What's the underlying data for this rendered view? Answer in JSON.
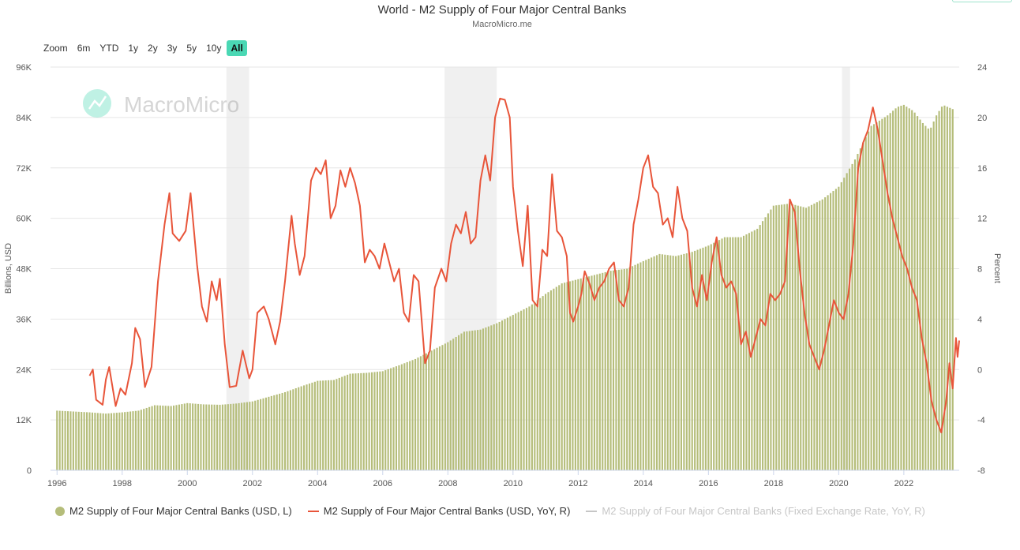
{
  "header": {
    "title": "World - M2 Supply of Four Major Central Banks",
    "subtitle": "MacroMicro.me",
    "watermark": "MacroMicro"
  },
  "range_buttons": [
    {
      "label": "Zoom",
      "active": false
    },
    {
      "label": "6m",
      "active": false
    },
    {
      "label": "YTD",
      "active": false
    },
    {
      "label": "1y",
      "active": false
    },
    {
      "label": "2y",
      "active": false
    },
    {
      "label": "3y",
      "active": false
    },
    {
      "label": "5y",
      "active": false
    },
    {
      "label": "10y",
      "active": false
    },
    {
      "label": "All",
      "active": true
    }
  ],
  "colors": {
    "bars": "#b5bd7a",
    "line": "#e8553a",
    "shade": "#f0f0f0",
    "grid": "#e6e6e6",
    "accent": "#4ad8b4",
    "muted_legend": "#c6c6c6"
  },
  "chart_data": {
    "type": "bar+line",
    "title": "World - M2 Supply of Four Major Central Banks",
    "subtitle": "MacroMicro.me",
    "x_range": [
      1995.8,
      2023.7
    ],
    "x_ticks": [
      "1996",
      "1998",
      "2000",
      "2002",
      "2004",
      "2006",
      "2008",
      "2010",
      "2012",
      "2014",
      "2016",
      "2018",
      "2020",
      "2022"
    ],
    "y_left": {
      "label": "Billions, USD",
      "range": [
        0,
        96000
      ],
      "ticks": [
        "0",
        "12K",
        "24K",
        "36K",
        "48K",
        "60K",
        "72K",
        "84K",
        "96K"
      ]
    },
    "y_right": {
      "label": "Percent",
      "range": [
        -8,
        24
      ],
      "ticks": [
        "-8",
        "-4",
        "0",
        "4",
        "8",
        "12",
        "16",
        "20",
        "24"
      ]
    },
    "grid": true,
    "legend_position": "bottom",
    "shaded_periods": [
      [
        2001.2,
        2001.9
      ],
      [
        2007.9,
        2009.5
      ],
      [
        2020.1,
        2020.35
      ]
    ],
    "series": [
      {
        "name": "M2 Supply of Four Major Central Banks (USD, L)",
        "type": "bar",
        "axis": "left",
        "points": [
          [
            1996.0,
            14200
          ],
          [
            1997.0,
            13800
          ],
          [
            1997.5,
            13500
          ],
          [
            1998.0,
            13800
          ],
          [
            1998.5,
            14200
          ],
          [
            1999.0,
            15500
          ],
          [
            1999.5,
            15300
          ],
          [
            2000.0,
            16000
          ],
          [
            2000.5,
            15700
          ],
          [
            2001.0,
            15600
          ],
          [
            2001.5,
            15900
          ],
          [
            2002.0,
            16400
          ],
          [
            2002.5,
            17500
          ],
          [
            2003.0,
            18600
          ],
          [
            2003.5,
            20000
          ],
          [
            2004.0,
            21300
          ],
          [
            2004.5,
            21500
          ],
          [
            2005.0,
            23000
          ],
          [
            2005.5,
            23200
          ],
          [
            2006.0,
            23600
          ],
          [
            2006.5,
            25000
          ],
          [
            2007.0,
            26500
          ],
          [
            2007.5,
            28500
          ],
          [
            2008.0,
            30500
          ],
          [
            2008.5,
            33000
          ],
          [
            2009.0,
            33500
          ],
          [
            2009.5,
            35000
          ],
          [
            2010.0,
            37000
          ],
          [
            2010.5,
            39000
          ],
          [
            2011.0,
            42000
          ],
          [
            2011.5,
            44500
          ],
          [
            2012.0,
            45500
          ],
          [
            2012.5,
            46500
          ],
          [
            2013.0,
            47500
          ],
          [
            2013.5,
            48000
          ],
          [
            2014.0,
            49800
          ],
          [
            2014.5,
            51500
          ],
          [
            2015.0,
            51000
          ],
          [
            2015.5,
            52000
          ],
          [
            2016.0,
            53500
          ],
          [
            2016.5,
            55500
          ],
          [
            2017.0,
            55500
          ],
          [
            2017.5,
            57500
          ],
          [
            2018.0,
            63000
          ],
          [
            2018.5,
            63500
          ],
          [
            2019.0,
            62500
          ],
          [
            2019.5,
            64500
          ],
          [
            2020.0,
            67500
          ],
          [
            2020.5,
            74000
          ],
          [
            2021.0,
            82000
          ],
          [
            2021.5,
            84500
          ],
          [
            2021.8,
            86500
          ],
          [
            2022.0,
            87000
          ],
          [
            2022.3,
            85500
          ],
          [
            2022.6,
            82500
          ],
          [
            2022.8,
            81000
          ],
          [
            2023.0,
            84500
          ],
          [
            2023.2,
            87000
          ],
          [
            2023.5,
            86000
          ]
        ]
      },
      {
        "name": "M2 Supply of Four Major Central Banks (USD, YoY, R)",
        "type": "line",
        "axis": "right",
        "points": [
          [
            1997.0,
            -0.5
          ],
          [
            1997.1,
            0
          ],
          [
            1997.2,
            -2.4
          ],
          [
            1997.4,
            -2.8
          ],
          [
            1997.5,
            -0.8
          ],
          [
            1997.6,
            0.2
          ],
          [
            1997.8,
            -2.9
          ],
          [
            1997.95,
            -1.5
          ],
          [
            1998.1,
            -2.0
          ],
          [
            1998.3,
            0.5
          ],
          [
            1998.4,
            3.3
          ],
          [
            1998.55,
            2.4
          ],
          [
            1998.7,
            -1.4
          ],
          [
            1998.9,
            0.2
          ],
          [
            1999.1,
            7.0
          ],
          [
            1999.3,
            11.5
          ],
          [
            1999.45,
            14.0
          ],
          [
            1999.55,
            10.8
          ],
          [
            1999.75,
            10.2
          ],
          [
            1999.95,
            11.0
          ],
          [
            2000.1,
            14.0
          ],
          [
            2000.3,
            8.3
          ],
          [
            2000.45,
            5.0
          ],
          [
            2000.6,
            3.8
          ],
          [
            2000.75,
            7.0
          ],
          [
            2000.9,
            5.5
          ],
          [
            2001.0,
            7.2
          ],
          [
            2001.15,
            2.0
          ],
          [
            2001.3,
            -1.4
          ],
          [
            2001.5,
            -1.3
          ],
          [
            2001.7,
            1.5
          ],
          [
            2001.9,
            -0.7
          ],
          [
            2002.0,
            0
          ],
          [
            2002.15,
            4.5
          ],
          [
            2002.35,
            5.0
          ],
          [
            2002.5,
            4.0
          ],
          [
            2002.7,
            2.0
          ],
          [
            2002.85,
            3.8
          ],
          [
            2003.0,
            7.0
          ],
          [
            2003.2,
            12.2
          ],
          [
            2003.3,
            10.0
          ],
          [
            2003.45,
            7.5
          ],
          [
            2003.6,
            9.0
          ],
          [
            2003.8,
            15.0
          ],
          [
            2003.95,
            16.0
          ],
          [
            2004.1,
            15.5
          ],
          [
            2004.25,
            16.6
          ],
          [
            2004.4,
            12.0
          ],
          [
            2004.55,
            13.0
          ],
          [
            2004.7,
            15.8
          ],
          [
            2004.85,
            14.5
          ],
          [
            2005.0,
            16.0
          ],
          [
            2005.15,
            14.8
          ],
          [
            2005.3,
            13.0
          ],
          [
            2005.45,
            8.5
          ],
          [
            2005.6,
            9.5
          ],
          [
            2005.75,
            9.0
          ],
          [
            2005.9,
            8.0
          ],
          [
            2006.05,
            10.0
          ],
          [
            2006.2,
            8.5
          ],
          [
            2006.35,
            7.0
          ],
          [
            2006.5,
            8.0
          ],
          [
            2006.65,
            4.5
          ],
          [
            2006.8,
            3.8
          ],
          [
            2006.95,
            7.5
          ],
          [
            2007.1,
            7.0
          ],
          [
            2007.3,
            0.5
          ],
          [
            2007.45,
            1.5
          ],
          [
            2007.6,
            6.5
          ],
          [
            2007.8,
            8.0
          ],
          [
            2007.95,
            7.0
          ],
          [
            2008.1,
            10.0
          ],
          [
            2008.25,
            11.5
          ],
          [
            2008.4,
            10.8
          ],
          [
            2008.55,
            12.5
          ],
          [
            2008.7,
            10.0
          ],
          [
            2008.85,
            10.5
          ],
          [
            2009.0,
            15.0
          ],
          [
            2009.15,
            17.0
          ],
          [
            2009.3,
            15.0
          ],
          [
            2009.45,
            20.0
          ],
          [
            2009.6,
            21.5
          ],
          [
            2009.75,
            21.4
          ],
          [
            2009.9,
            20.0
          ],
          [
            2010.0,
            14.5
          ],
          [
            2010.15,
            11.0
          ],
          [
            2010.3,
            8.2
          ],
          [
            2010.45,
            13.0
          ],
          [
            2010.6,
            5.5
          ],
          [
            2010.75,
            5.0
          ],
          [
            2010.9,
            9.5
          ],
          [
            2011.05,
            9.0
          ],
          [
            2011.2,
            15.5
          ],
          [
            2011.35,
            11.0
          ],
          [
            2011.5,
            10.5
          ],
          [
            2011.65,
            9.0
          ],
          [
            2011.75,
            4.5
          ],
          [
            2011.85,
            3.8
          ],
          [
            2012.0,
            5.0
          ],
          [
            2012.1,
            6.0
          ],
          [
            2012.2,
            7.8
          ],
          [
            2012.35,
            6.8
          ],
          [
            2012.5,
            5.5
          ],
          [
            2012.65,
            6.5
          ],
          [
            2012.8,
            7.0
          ],
          [
            2012.95,
            8.0
          ],
          [
            2013.1,
            8.5
          ],
          [
            2013.25,
            5.5
          ],
          [
            2013.4,
            5.0
          ],
          [
            2013.55,
            6.5
          ],
          [
            2013.7,
            11.5
          ],
          [
            2013.85,
            13.5
          ],
          [
            2014.0,
            16.0
          ],
          [
            2014.15,
            17.0
          ],
          [
            2014.3,
            14.5
          ],
          [
            2014.45,
            14.0
          ],
          [
            2014.6,
            11.5
          ],
          [
            2014.75,
            12.0
          ],
          [
            2014.9,
            10.5
          ],
          [
            2015.05,
            14.5
          ],
          [
            2015.2,
            12.0
          ],
          [
            2015.35,
            11.0
          ],
          [
            2015.5,
            6.5
          ],
          [
            2015.65,
            5.0
          ],
          [
            2015.8,
            7.5
          ],
          [
            2015.95,
            5.5
          ],
          [
            2016.1,
            8.5
          ],
          [
            2016.25,
            10.5
          ],
          [
            2016.4,
            7.5
          ],
          [
            2016.55,
            6.5
          ],
          [
            2016.7,
            7.0
          ],
          [
            2016.85,
            6.0
          ],
          [
            2017.0,
            2.0
          ],
          [
            2017.15,
            3.0
          ],
          [
            2017.3,
            1.0
          ],
          [
            2017.45,
            2.5
          ],
          [
            2017.6,
            4.0
          ],
          [
            2017.75,
            3.5
          ],
          [
            2017.9,
            6.0
          ],
          [
            2018.05,
            5.5
          ],
          [
            2018.2,
            6.0
          ],
          [
            2018.35,
            7.0
          ],
          [
            2018.5,
            13.5
          ],
          [
            2018.65,
            12.5
          ],
          [
            2018.8,
            8.0
          ],
          [
            2018.95,
            4.5
          ],
          [
            2019.1,
            2.0
          ],
          [
            2019.25,
            1.0
          ],
          [
            2019.4,
            0
          ],
          [
            2019.55,
            1.5
          ],
          [
            2019.7,
            3.5
          ],
          [
            2019.85,
            5.5
          ],
          [
            2020.0,
            4.5
          ],
          [
            2020.15,
            4.0
          ],
          [
            2020.3,
            6.0
          ],
          [
            2020.45,
            10.0
          ],
          [
            2020.6,
            16.0
          ],
          [
            2020.75,
            18.0
          ],
          [
            2020.9,
            19.0
          ],
          [
            2021.05,
            20.8
          ],
          [
            2021.2,
            19.0
          ],
          [
            2021.35,
            16.5
          ],
          [
            2021.5,
            14.0
          ],
          [
            2021.65,
            12.0
          ],
          [
            2021.8,
            10.5
          ],
          [
            2021.95,
            9.0
          ],
          [
            2022.1,
            8.0
          ],
          [
            2022.25,
            6.5
          ],
          [
            2022.4,
            5.5
          ],
          [
            2022.55,
            2.5
          ],
          [
            2022.7,
            0.5
          ],
          [
            2022.85,
            -2.5
          ],
          [
            2023.0,
            -4.0
          ],
          [
            2023.15,
            -5.0
          ],
          [
            2023.3,
            -2.5
          ],
          [
            2023.4,
            0.5
          ],
          [
            2023.5,
            -1.5
          ],
          [
            2023.6,
            2.5
          ],
          [
            2023.65,
            1.0
          ],
          [
            2023.7,
            2.3
          ]
        ]
      },
      {
        "name": "M2 Supply of Four Major Central Banks (Fixed Exchange Rate, YoY, R)",
        "type": "line",
        "axis": "right",
        "hidden": true,
        "points": []
      }
    ]
  },
  "legend": [
    {
      "label": "M2 Supply of Four Major Central Banks (USD, L)",
      "marker": "dot",
      "color": "#b5bd7a",
      "muted": false
    },
    {
      "label": "M2 Supply of Four Major Central Banks (USD, YoY, R)",
      "marker": "line",
      "color": "#e8553a",
      "muted": false
    },
    {
      "label": "M2 Supply of Four Major Central Banks (Fixed Exchange Rate, YoY, R)",
      "marker": "line",
      "color": "#c6c6c6",
      "muted": true
    }
  ]
}
